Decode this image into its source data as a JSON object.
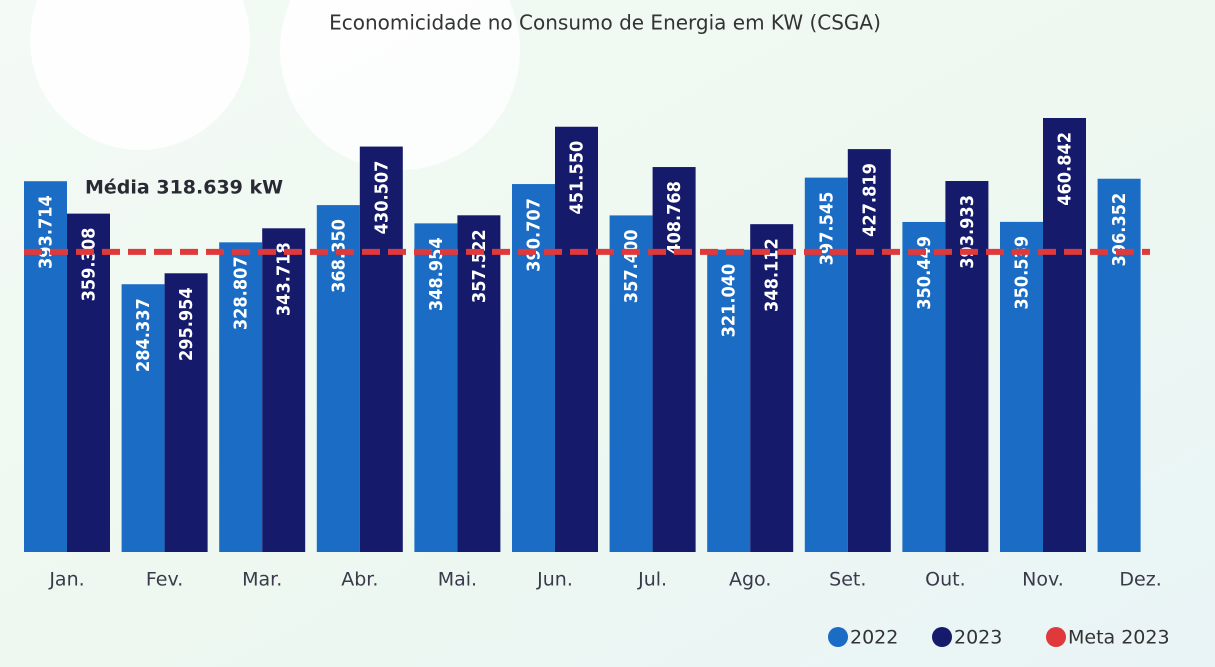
{
  "chart_data": {
    "type": "bar",
    "title": "Economicidade no Consumo de Energia em KW (CSGA)",
    "categories": [
      "Jan.",
      "Fev.",
      "Mar.",
      "Abr.",
      "Mai.",
      "Jun.",
      "Jul.",
      "Ago.",
      "Set.",
      "Out.",
      "Nov.",
      "Dez."
    ],
    "series": [
      {
        "name": "2022",
        "color": "#1a6cc4",
        "values": [
          393714,
          284337,
          328807,
          368350,
          348954,
          390707,
          357400,
          321040,
          397545,
          350449,
          350539,
          396352
        ],
        "value_labels": [
          "393.714",
          "284.337",
          "328.807",
          "368.350",
          "348.954",
          "390.707",
          "357.400",
          "321.040",
          "397.545",
          "350.449",
          "350.539",
          "396.352"
        ]
      },
      {
        "name": "2023",
        "color": "#151a6b",
        "values": [
          359308,
          295954,
          343718,
          430507,
          357522,
          451550,
          408768,
          348112,
          427819,
          393933,
          460842,
          null
        ],
        "value_labels": [
          "359.308",
          "295.954",
          "343.718",
          "430.507",
          "357.522",
          "451.550",
          "408.768",
          "348.112",
          "427.819",
          "393.933",
          "460.842",
          null
        ]
      }
    ],
    "reference_lines": [
      {
        "name": "Meta 2023",
        "color": "#e0393b",
        "value": 318639
      }
    ],
    "annotation": "Média 318.639 kW",
    "legend": "bottom-right"
  }
}
